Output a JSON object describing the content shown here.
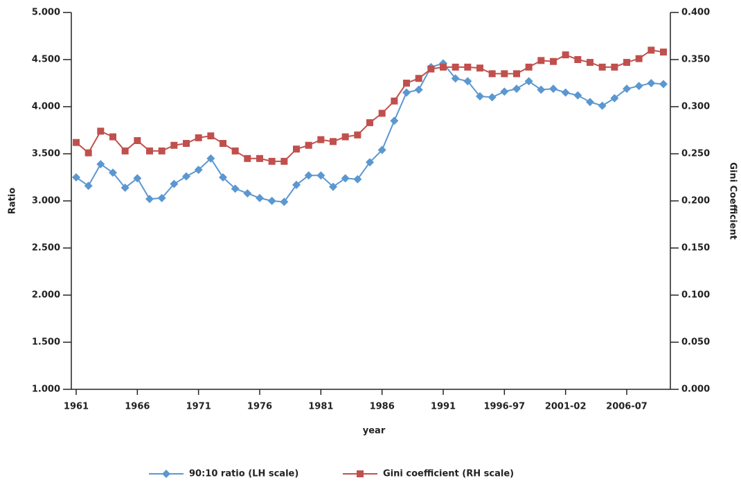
{
  "chart_data": {
    "type": "line",
    "xlabel": "year",
    "ylabel": "Ratio",
    "y2label": "Gini Coefficient",
    "categories": [
      "1961",
      null,
      null,
      null,
      null,
      "1966",
      null,
      null,
      null,
      null,
      "1971",
      null,
      null,
      null,
      null,
      "1976",
      null,
      null,
      null,
      null,
      "1981",
      null,
      null,
      null,
      null,
      "1986",
      null,
      null,
      null,
      null,
      "1991",
      null,
      null,
      null,
      null,
      "1996-97",
      null,
      null,
      null,
      null,
      "2001-02",
      null,
      null,
      null,
      null,
      "2006-07",
      null,
      null,
      null
    ],
    "series": [
      {
        "name": "90:10 ratio (LH scale)",
        "color": "#5b97d1",
        "marker": "diamond",
        "values": [
          3.25,
          3.16,
          3.39,
          3.3,
          3.14,
          3.24,
          3.02,
          3.03,
          3.18,
          3.26,
          3.33,
          3.45,
          3.25,
          3.13,
          3.08,
          3.03,
          3.0,
          2.99,
          3.17,
          3.27,
          3.27,
          3.15,
          3.24,
          3.23,
          3.41,
          3.54,
          3.85,
          4.15,
          4.18,
          4.42,
          4.46,
          4.3,
          4.27,
          4.11,
          4.1,
          4.16,
          4.19,
          4.27,
          4.18,
          4.19,
          4.15,
          4.12,
          4.05,
          4.01,
          4.09,
          4.19,
          4.22,
          4.25,
          4.24
        ]
      },
      {
        "name": "Gini coefficient (RH scale)",
        "color": "#c0504d",
        "marker": "square",
        "axis": "y2",
        "values": [
          0.262,
          0.251,
          0.274,
          0.268,
          0.253,
          0.264,
          0.253,
          0.253,
          0.259,
          0.261,
          0.267,
          0.269,
          0.261,
          0.253,
          0.245,
          0.245,
          0.242,
          0.242,
          0.255,
          0.259,
          0.265,
          0.263,
          0.268,
          0.27,
          0.283,
          0.293,
          0.306,
          0.325,
          0.33,
          0.34,
          0.342,
          0.342,
          0.342,
          0.341,
          0.335,
          0.335,
          0.335,
          0.342,
          0.349,
          0.348,
          0.355,
          0.35,
          0.347,
          0.342,
          0.342,
          0.347,
          0.351,
          0.36,
          0.358
        ]
      }
    ],
    "ylim": [
      1,
      5
    ],
    "yticks": [
      {
        "value": 1,
        "label": "1.000"
      },
      {
        "value": 1.5,
        "label": "1.500"
      },
      {
        "value": 2,
        "label": "2.000"
      },
      {
        "value": 2.5,
        "label": "2.500"
      },
      {
        "value": 3,
        "label": "3.000"
      },
      {
        "value": 3.5,
        "label": "3.500"
      },
      {
        "value": 4,
        "label": "4.000"
      },
      {
        "value": 4.5,
        "label": "4.500"
      },
      {
        "value": 5,
        "label": "5.000"
      }
    ],
    "y2lim": [
      0,
      0.4
    ],
    "y2ticks": [
      {
        "value": 0,
        "label": "0.000"
      },
      {
        "value": 0.05,
        "label": "0.050"
      },
      {
        "value": 0.1,
        "label": "0.100"
      },
      {
        "value": 0.15,
        "label": "0.150"
      },
      {
        "value": 0.2,
        "label": "0.200"
      },
      {
        "value": 0.25,
        "label": "0.250"
      },
      {
        "value": 0.3,
        "label": "0.300"
      },
      {
        "value": 0.35,
        "label": "0.350"
      },
      {
        "value": 0.4,
        "label": "0.400"
      }
    ],
    "legend": "bottom"
  }
}
